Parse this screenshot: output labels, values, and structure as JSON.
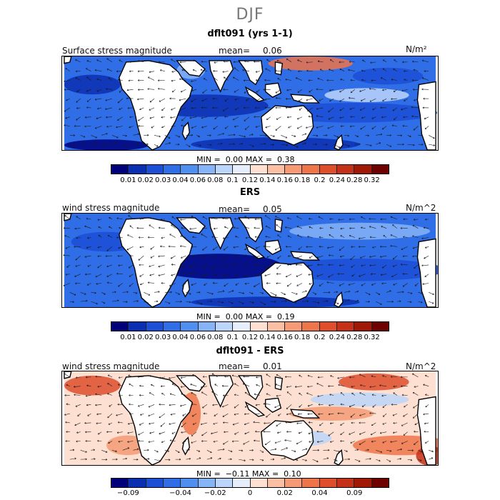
{
  "figure": {
    "title": "DJF"
  },
  "palette": {
    "land": "#ffffff",
    "coast": "#000000",
    "arrow": "#1a1a1a",
    "scale_colors": [
      "#00007a",
      "#0a2fb0",
      "#1b4fd6",
      "#2f6ee6",
      "#4f8ff0",
      "#86b4f6",
      "#bcd5fa",
      "#e6eefc",
      "#fde0d2",
      "#fbbfa4",
      "#f59a74",
      "#ee744a",
      "#de4e2b",
      "#c53018",
      "#a01806",
      "#6f0000"
    ]
  },
  "panels": [
    {
      "title": "dflt091 (yrs 1-1)",
      "field_label": "Surface stress magnitude",
      "mean_label": "mean=",
      "mean_value": "0.06",
      "units": "N/m²",
      "min_label": "MIN =",
      "min_value": "0.00",
      "max_label": "MAX =",
      "max_value": "0.38",
      "tick_labels": [
        "0.01",
        "0.02",
        "0.03",
        "0.04",
        "0.06",
        "0.08",
        "0.1",
        "0.12",
        "0.14",
        "0.16",
        "0.18",
        "0.2",
        "0.24",
        "0.28",
        "0.32"
      ]
    },
    {
      "title": "ERS",
      "field_label": "wind stress magnitude",
      "mean_label": "mean=",
      "mean_value": "0.05",
      "units": "N/m^2",
      "min_label": "MIN =",
      "min_value": "0.00",
      "max_label": "MAX =",
      "max_value": "0.19",
      "tick_labels": [
        "0.01",
        "0.02",
        "0.03",
        "0.04",
        "0.06",
        "0.08",
        "0.1",
        "0.12",
        "0.14",
        "0.16",
        "0.18",
        "0.2",
        "0.24",
        "0.28",
        "0.32"
      ]
    },
    {
      "title": "dflt091 - ERS",
      "field_label": "wind stress magnitude",
      "mean_label": "mean=",
      "mean_value": "0.01",
      "units": "N/m^2",
      "min_label": "MIN =",
      "min_value": "−0.11",
      "max_label": "MAX =",
      "max_value": "0.10",
      "tick_labels": [
        "−0.09",
        "−0.04",
        "−0.02",
        "0",
        "0.02",
        "0.04",
        "0.09"
      ]
    }
  ]
}
